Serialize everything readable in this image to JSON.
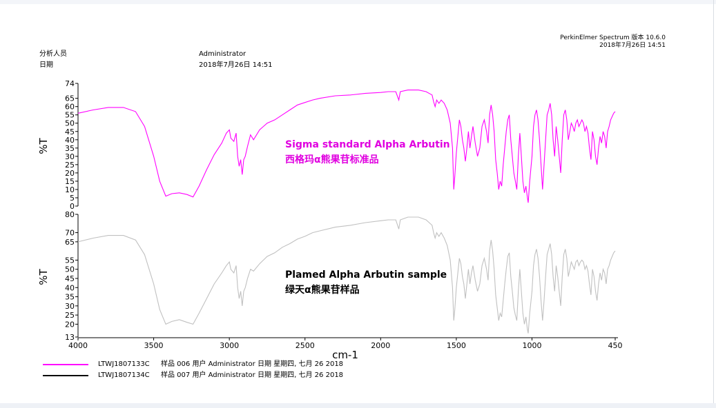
{
  "header": {
    "software": "PerkinElmer Spectrum 版本 10.6.0",
    "software_datetime": "2018年7月26日  14:51",
    "analyst_label": "分析人员",
    "analyst_value": "Administrator",
    "date_label": "日期",
    "date_value": "2018年7月26日  14:51"
  },
  "legend": [
    {
      "id": "LTWJ1807133C",
      "text": "样品 006 用户 Administrator 日期 星期四, 七月 26 2018",
      "color": "#ff00ff"
    },
    {
      "id": "LTWJ1807134C",
      "text": "样品 007 用户 Administrator 日期 星期四, 七月 26 2018",
      "color": "#000000"
    }
  ],
  "chart_data": [
    {
      "type": "line",
      "ylabel": "%T",
      "xlabel": "cm-1",
      "color": "#ff00ff",
      "annotation": [
        "Sigma standard Alpha Arbutin",
        "西格玛α熊果苷标准品"
      ],
      "annotation_color": "#e000e0",
      "y_ticks": [
        0,
        5,
        10,
        15,
        20,
        25,
        30,
        35,
        40,
        45,
        50,
        55,
        60,
        65,
        74
      ],
      "ylim": [
        0,
        74
      ],
      "xlim": [
        4000,
        450
      ],
      "points": [
        [
          4000,
          56
        ],
        [
          3900,
          58
        ],
        [
          3800,
          59.5
        ],
        [
          3700,
          59.5
        ],
        [
          3620,
          57
        ],
        [
          3560,
          48
        ],
        [
          3500,
          30
        ],
        [
          3460,
          15
        ],
        [
          3420,
          6
        ],
        [
          3380,
          7.5
        ],
        [
          3330,
          8
        ],
        [
          3280,
          7
        ],
        [
          3240,
          5.5
        ],
        [
          3200,
          12
        ],
        [
          3150,
          22
        ],
        [
          3100,
          31
        ],
        [
          3050,
          38
        ],
        [
          3020,
          44
        ],
        [
          3000,
          46
        ],
        [
          2990,
          41
        ],
        [
          2970,
          39
        ],
        [
          2955,
          44
        ],
        [
          2945,
          30
        ],
        [
          2935,
          24
        ],
        [
          2925,
          28
        ],
        [
          2915,
          19
        ],
        [
          2905,
          28
        ],
        [
          2895,
          30
        ],
        [
          2880,
          36
        ],
        [
          2860,
          43
        ],
        [
          2840,
          40
        ],
        [
          2800,
          46
        ],
        [
          2750,
          50
        ],
        [
          2700,
          52
        ],
        [
          2650,
          55
        ],
        [
          2600,
          58
        ],
        [
          2550,
          61
        ],
        [
          2500,
          62.5
        ],
        [
          2450,
          64
        ],
        [
          2400,
          65
        ],
        [
          2300,
          66.5
        ],
        [
          2200,
          67
        ],
        [
          2100,
          68
        ],
        [
          2000,
          68.5
        ],
        [
          1950,
          69
        ],
        [
          1900,
          69
        ],
        [
          1880,
          64
        ],
        [
          1870,
          69
        ],
        [
          1820,
          70
        ],
        [
          1750,
          70
        ],
        [
          1700,
          69
        ],
        [
          1660,
          67
        ],
        [
          1650,
          63
        ],
        [
          1640,
          60
        ],
        [
          1630,
          64
        ],
        [
          1615,
          62
        ],
        [
          1600,
          64
        ],
        [
          1580,
          62
        ],
        [
          1560,
          58
        ],
        [
          1540,
          50
        ],
        [
          1525,
          35
        ],
        [
          1517,
          10
        ],
        [
          1510,
          18
        ],
        [
          1500,
          32
        ],
        [
          1490,
          42
        ],
        [
          1480,
          52
        ],
        [
          1470,
          48
        ],
        [
          1460,
          40
        ],
        [
          1450,
          35
        ],
        [
          1440,
          27
        ],
        [
          1430,
          35
        ],
        [
          1420,
          45
        ],
        [
          1410,
          35
        ],
        [
          1400,
          42
        ],
        [
          1390,
          48
        ],
        [
          1375,
          38
        ],
        [
          1360,
          30
        ],
        [
          1345,
          35
        ],
        [
          1330,
          48
        ],
        [
          1315,
          52
        ],
        [
          1300,
          45
        ],
        [
          1290,
          38
        ],
        [
          1280,
          55
        ],
        [
          1270,
          61
        ],
        [
          1260,
          55
        ],
        [
          1250,
          45
        ],
        [
          1240,
          28
        ],
        [
          1230,
          20
        ],
        [
          1220,
          10
        ],
        [
          1210,
          15
        ],
        [
          1200,
          12
        ],
        [
          1190,
          25
        ],
        [
          1180,
          35
        ],
        [
          1170,
          45
        ],
        [
          1160,
          52
        ],
        [
          1150,
          55
        ],
        [
          1140,
          40
        ],
        [
          1130,
          30
        ],
        [
          1120,
          20
        ],
        [
          1110,
          15
        ],
        [
          1100,
          10
        ],
        [
          1090,
          30
        ],
        [
          1080,
          44
        ],
        [
          1070,
          30
        ],
        [
          1060,
          15
        ],
        [
          1050,
          8
        ],
        [
          1040,
          12
        ],
        [
          1030,
          5
        ],
        [
          1025,
          2
        ],
        [
          1015,
          15
        ],
        [
          1000,
          30
        ],
        [
          990,
          48
        ],
        [
          980,
          55
        ],
        [
          970,
          58
        ],
        [
          960,
          52
        ],
        [
          950,
          40
        ],
        [
          940,
          25
        ],
        [
          930,
          10
        ],
        [
          920,
          25
        ],
        [
          910,
          40
        ],
        [
          900,
          55
        ],
        [
          890,
          58
        ],
        [
          880,
          62
        ],
        [
          870,
          55
        ],
        [
          860,
          40
        ],
        [
          850,
          30
        ],
        [
          840,
          48
        ],
        [
          830,
          40
        ],
        [
          820,
          30
        ],
        [
          810,
          20
        ],
        [
          800,
          40
        ],
        [
          790,
          55
        ],
        [
          780,
          58
        ],
        [
          770,
          52
        ],
        [
          760,
          40
        ],
        [
          750,
          45
        ],
        [
          740,
          50
        ],
        [
          730,
          48
        ],
        [
          720,
          45
        ],
        [
          710,
          50
        ],
        [
          700,
          52
        ],
        [
          690,
          48
        ],
        [
          680,
          50
        ],
        [
          670,
          52
        ],
        [
          660,
          50
        ],
        [
          650,
          45
        ],
        [
          640,
          48
        ],
        [
          630,
          44
        ],
        [
          620,
          35
        ],
        [
          610,
          28
        ],
        [
          600,
          45
        ],
        [
          590,
          40
        ],
        [
          580,
          30
        ],
        [
          570,
          25
        ],
        [
          560,
          35
        ],
        [
          550,
          42
        ],
        [
          540,
          38
        ],
        [
          530,
          45
        ],
        [
          520,
          42
        ],
        [
          510,
          35
        ],
        [
          500,
          45
        ],
        [
          490,
          48
        ],
        [
          480,
          52
        ],
        [
          470,
          54
        ],
        [
          460,
          56
        ],
        [
          450,
          57
        ]
      ]
    },
    {
      "type": "line",
      "ylabel": "%T",
      "xlabel": "cm-1",
      "color": "#c0c0c0",
      "annotation": [
        "Plamed Alpha Arbutin sample",
        "绿天α熊果苷样品"
      ],
      "annotation_color": "#000000",
      "y_ticks": [
        13,
        20,
        25,
        30,
        35,
        40,
        45,
        50,
        55,
        65,
        70,
        80
      ],
      "ylim": [
        13,
        80
      ],
      "xlim": [
        4000,
        450
      ],
      "points": [
        [
          4000,
          65
        ],
        [
          3900,
          67
        ],
        [
          3800,
          68.5
        ],
        [
          3700,
          68.5
        ],
        [
          3620,
          66
        ],
        [
          3560,
          58
        ],
        [
          3500,
          42
        ],
        [
          3460,
          28
        ],
        [
          3420,
          20
        ],
        [
          3380,
          21.5
        ],
        [
          3330,
          22.5
        ],
        [
          3280,
          21
        ],
        [
          3240,
          20
        ],
        [
          3200,
          26
        ],
        [
          3150,
          34
        ],
        [
          3100,
          42
        ],
        [
          3050,
          48
        ],
        [
          3020,
          52
        ],
        [
          3000,
          54
        ],
        [
          2990,
          50
        ],
        [
          2970,
          48
        ],
        [
          2955,
          52
        ],
        [
          2945,
          40
        ],
        [
          2935,
          34
        ],
        [
          2925,
          38
        ],
        [
          2915,
          30
        ],
        [
          2905,
          38
        ],
        [
          2895,
          40
        ],
        [
          2880,
          45
        ],
        [
          2860,
          50
        ],
        [
          2840,
          49
        ],
        [
          2800,
          53
        ],
        [
          2750,
          57
        ],
        [
          2700,
          59
        ],
        [
          2650,
          62
        ],
        [
          2600,
          64
        ],
        [
          2550,
          66.5
        ],
        [
          2500,
          68
        ],
        [
          2450,
          70
        ],
        [
          2400,
          71
        ],
        [
          2300,
          73
        ],
        [
          2200,
          74
        ],
        [
          2100,
          75.5
        ],
        [
          2000,
          76.5
        ],
        [
          1950,
          77
        ],
        [
          1900,
          77
        ],
        [
          1880,
          72
        ],
        [
          1870,
          77
        ],
        [
          1820,
          78.5
        ],
        [
          1750,
          78.5
        ],
        [
          1700,
          77
        ],
        [
          1660,
          74
        ],
        [
          1650,
          70
        ],
        [
          1640,
          67
        ],
        [
          1630,
          70
        ],
        [
          1615,
          68
        ],
        [
          1600,
          70
        ],
        [
          1580,
          67
        ],
        [
          1560,
          63
        ],
        [
          1540,
          55
        ],
        [
          1525,
          40
        ],
        [
          1517,
          22
        ],
        [
          1510,
          28
        ],
        [
          1500,
          40
        ],
        [
          1490,
          48
        ],
        [
          1480,
          56
        ],
        [
          1470,
          53
        ],
        [
          1460,
          46
        ],
        [
          1450,
          42
        ],
        [
          1440,
          34
        ],
        [
          1430,
          42
        ],
        [
          1420,
          50
        ],
        [
          1410,
          42
        ],
        [
          1400,
          48
        ],
        [
          1390,
          52
        ],
        [
          1375,
          44
        ],
        [
          1360,
          38
        ],
        [
          1345,
          42
        ],
        [
          1330,
          52
        ],
        [
          1315,
          56
        ],
        [
          1300,
          50
        ],
        [
          1290,
          44
        ],
        [
          1280,
          60
        ],
        [
          1270,
          66
        ],
        [
          1260,
          60
        ],
        [
          1250,
          50
        ],
        [
          1240,
          36
        ],
        [
          1230,
          29
        ],
        [
          1220,
          22
        ],
        [
          1210,
          26
        ],
        [
          1200,
          24
        ],
        [
          1190,
          33
        ],
        [
          1180,
          42
        ],
        [
          1170,
          50
        ],
        [
          1160,
          57
        ],
        [
          1150,
          59
        ],
        [
          1140,
          46
        ],
        [
          1130,
          38
        ],
        [
          1120,
          29
        ],
        [
          1110,
          25
        ],
        [
          1100,
          22
        ],
        [
          1090,
          38
        ],
        [
          1080,
          50
        ],
        [
          1070,
          38
        ],
        [
          1060,
          26
        ],
        [
          1050,
          20
        ],
        [
          1040,
          24
        ],
        [
          1030,
          17
        ],
        [
          1025,
          15
        ],
        [
          1015,
          26
        ],
        [
          1000,
          38
        ],
        [
          990,
          52
        ],
        [
          980,
          58
        ],
        [
          970,
          61
        ],
        [
          960,
          56
        ],
        [
          950,
          46
        ],
        [
          940,
          33
        ],
        [
          930,
          22
        ],
        [
          920,
          33
        ],
        [
          910,
          46
        ],
        [
          900,
          58
        ],
        [
          890,
          61
        ],
        [
          880,
          64
        ],
        [
          870,
          58
        ],
        [
          860,
          46
        ],
        [
          850,
          38
        ],
        [
          840,
          52
        ],
        [
          830,
          46
        ],
        [
          820,
          38
        ],
        [
          810,
          30
        ],
        [
          800,
          46
        ],
        [
          790,
          58
        ],
        [
          780,
          61
        ],
        [
          770,
          56
        ],
        [
          760,
          46
        ],
        [
          750,
          50
        ],
        [
          740,
          54
        ],
        [
          730,
          52
        ],
        [
          720,
          50
        ],
        [
          710,
          54
        ],
        [
          700,
          55
        ],
        [
          690,
          52
        ],
        [
          680,
          54
        ],
        [
          670,
          55
        ],
        [
          660,
          54
        ],
        [
          650,
          50
        ],
        [
          640,
          52
        ],
        [
          630,
          49
        ],
        [
          620,
          42
        ],
        [
          610,
          36
        ],
        [
          600,
          50
        ],
        [
          590,
          46
        ],
        [
          580,
          38
        ],
        [
          570,
          33
        ],
        [
          560,
          42
        ],
        [
          550,
          48
        ],
        [
          540,
          44
        ],
        [
          530,
          50
        ],
        [
          520,
          48
        ],
        [
          510,
          42
        ],
        [
          500,
          50
        ],
        [
          490,
          52
        ],
        [
          480,
          55
        ],
        [
          470,
          57
        ],
        [
          460,
          59
        ],
        [
          450,
          60
        ]
      ]
    }
  ],
  "x_ticks": [
    4000,
    3500,
    3000,
    2500,
    2000,
    1500,
    1000,
    450
  ]
}
